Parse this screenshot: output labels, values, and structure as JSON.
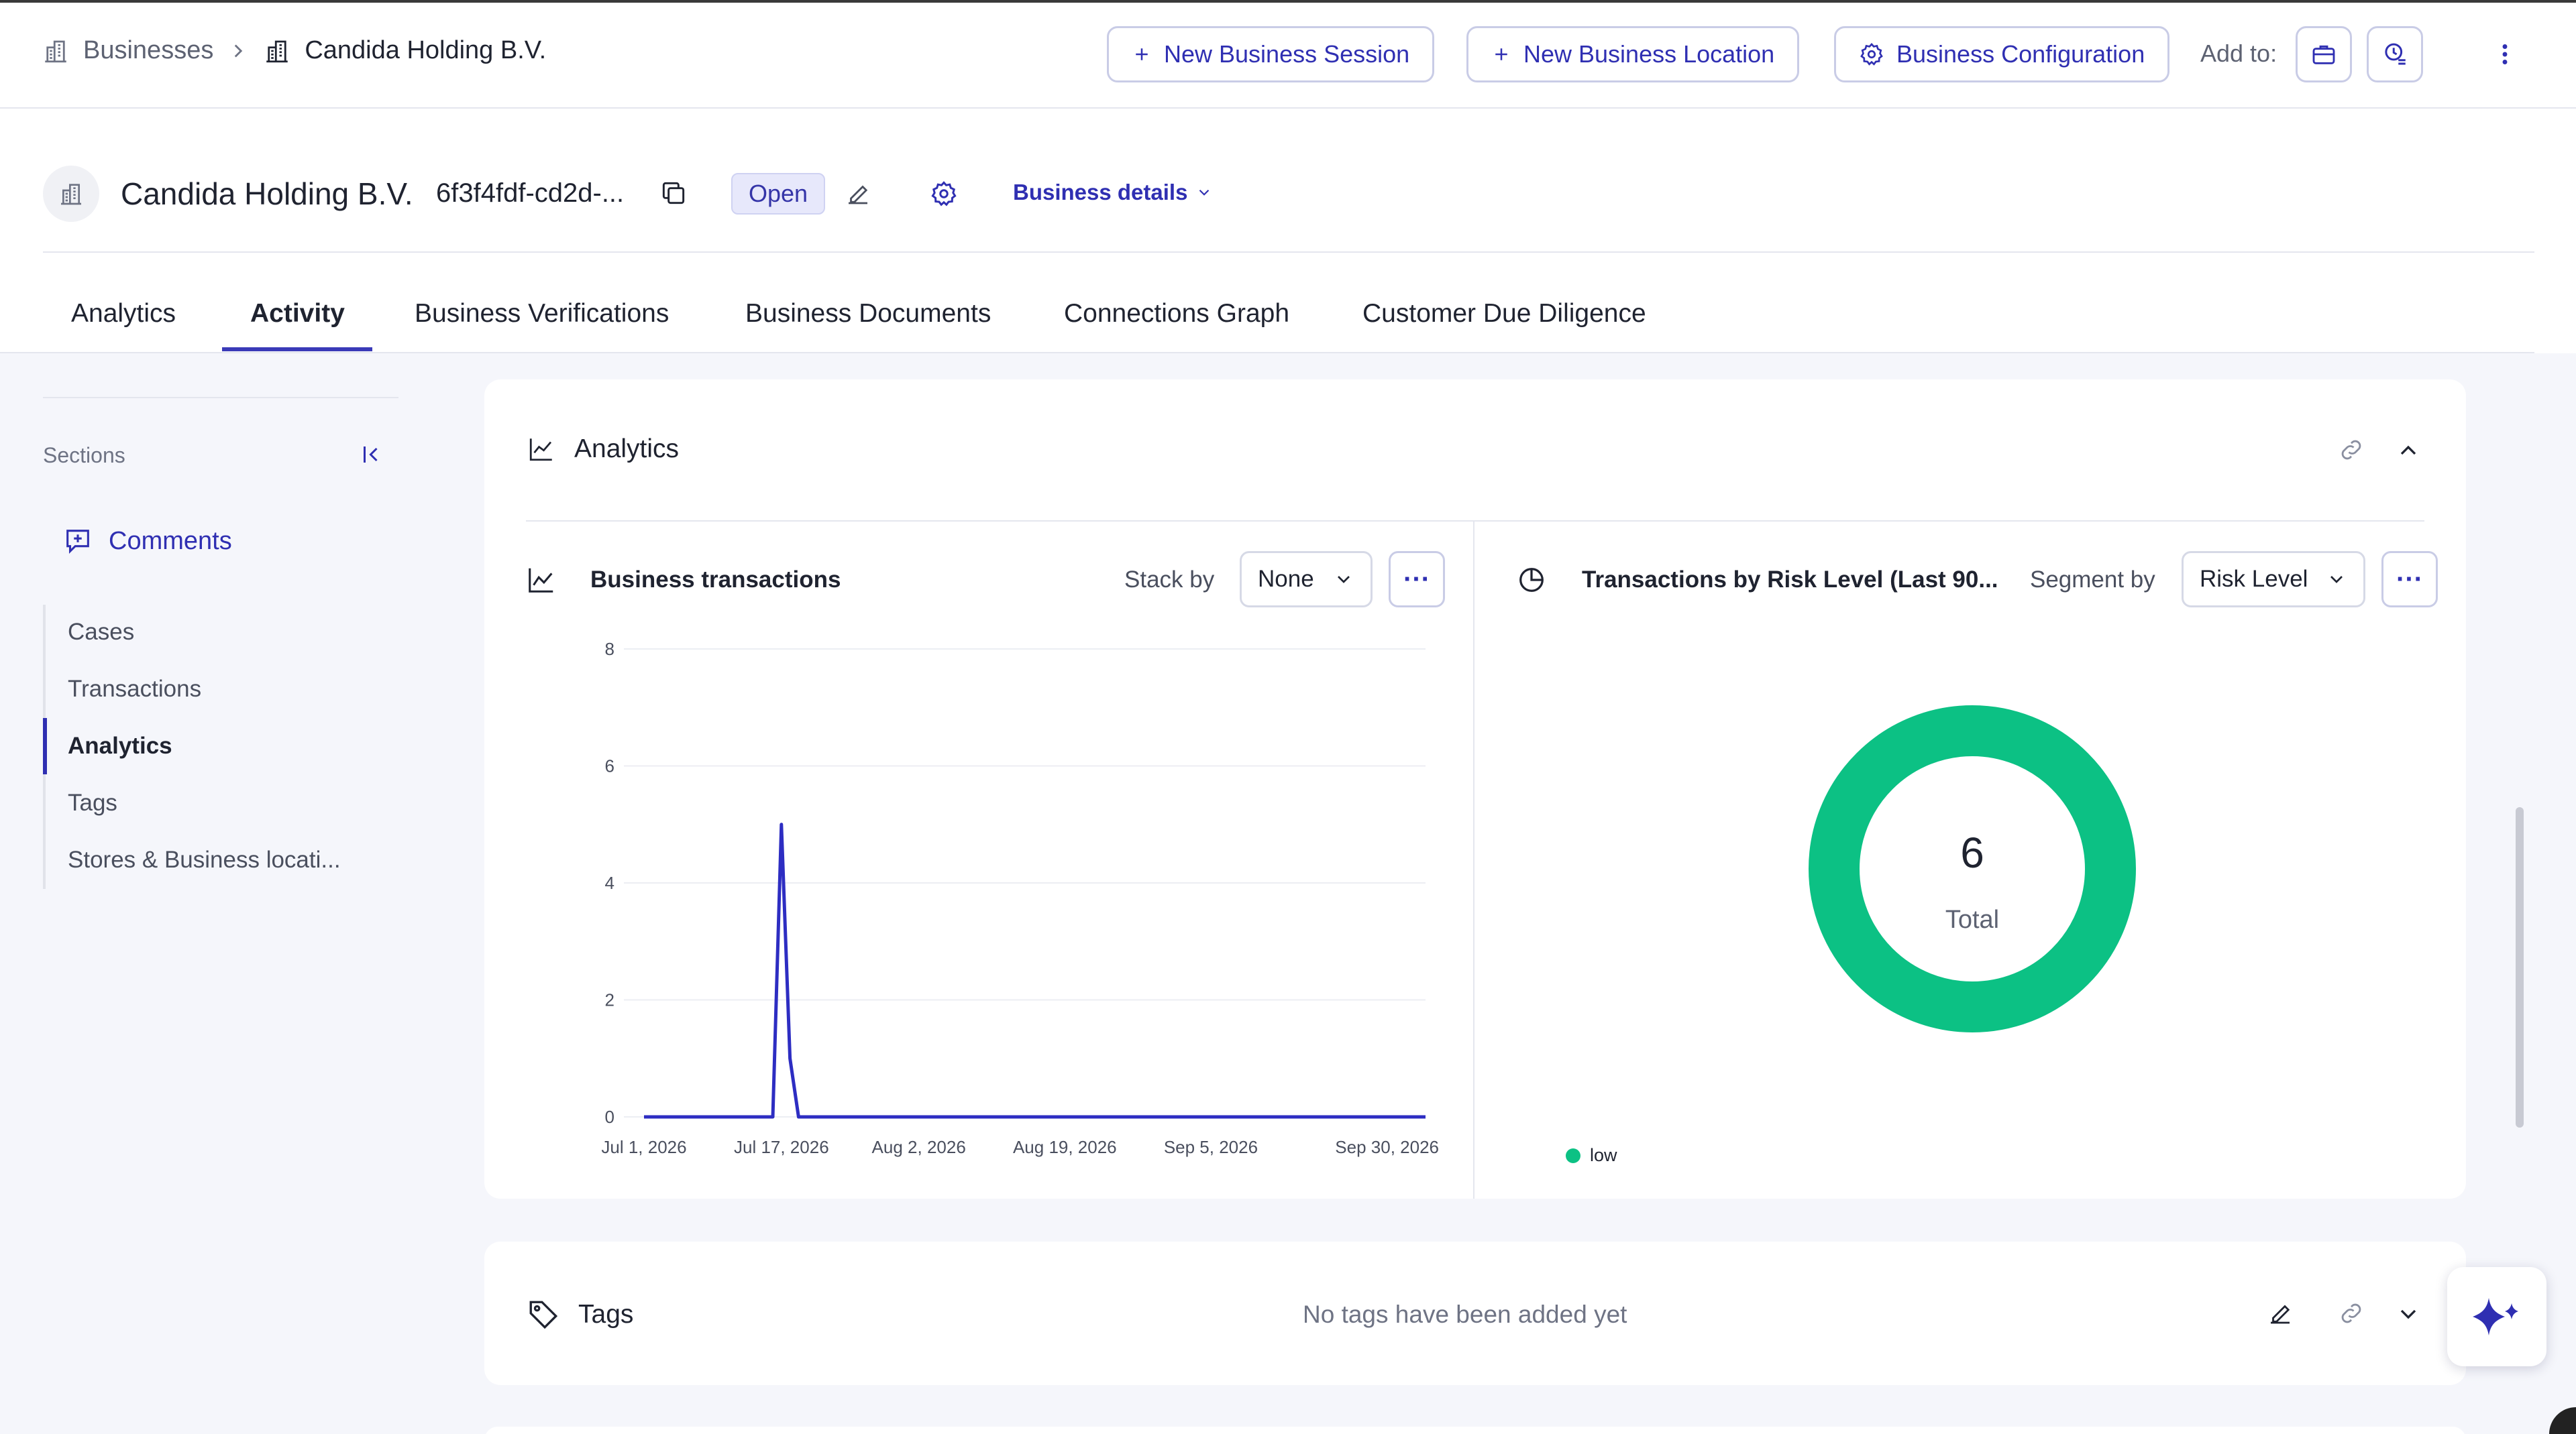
{
  "header": {
    "breadcrumb_root": "Businesses",
    "breadcrumb_current": "Candida Holding B.V.",
    "new_session": "New Business Session",
    "new_location": "New Business Location",
    "configuration": "Business Configuration",
    "add_to": "Add to:"
  },
  "entity": {
    "name": "Candida Holding B.V.",
    "id": "6f3f4fdf-cd2d-...",
    "status": "Open",
    "details": "Business details"
  },
  "tabs": [
    {
      "label": "Analytics"
    },
    {
      "label": "Activity"
    },
    {
      "label": "Business Verifications"
    },
    {
      "label": "Business Documents"
    },
    {
      "label": "Connections Graph"
    },
    {
      "label": "Customer Due Diligence"
    }
  ],
  "sidebar": {
    "label": "Sections",
    "comments": "Comments",
    "items": [
      {
        "label": "Cases"
      },
      {
        "label": "Transactions"
      },
      {
        "label": "Analytics"
      },
      {
        "label": "Tags"
      },
      {
        "label": "Stores & Business locati..."
      }
    ]
  },
  "analytics_card": {
    "title": "Analytics",
    "left_chart": {
      "title": "Business transactions",
      "control_label": "Stack by",
      "control_value": "None"
    },
    "right_chart": {
      "title": "Transactions by Risk Level (Last 90...",
      "control_label": "Segment by",
      "control_value": "Risk Level"
    }
  },
  "tags_card": {
    "title": "Tags",
    "empty": "No tags have been added yet"
  },
  "colors": {
    "accent": "#2f2fb2",
    "line": "#2d2dc2",
    "low": "#0cc184"
  },
  "chart_data": [
    {
      "type": "line",
      "title": "Business transactions",
      "x": [
        "Jul 1, 2026",
        "Jul 15, 2026",
        "Jul 16, 2026",
        "Jul 17, 2026",
        "Jul 18, 2026",
        "Jul 19, 2026",
        "Sep 30, 2026"
      ],
      "series": [
        {
          "values": [
            0,
            0,
            0,
            5,
            1,
            0,
            0
          ]
        }
      ],
      "x_ticks": [
        "Jul 1, 2026",
        "Jul 17, 2026",
        "Aug 2, 2026",
        "Aug 19, 2026",
        "Sep 5, 2026",
        "Sep 30, 2026"
      ],
      "y_ticks": [
        "0",
        "2",
        "4",
        "6",
        "8"
      ],
      "ylim": [
        0,
        8
      ],
      "grid": true
    },
    {
      "type": "pie",
      "title": "Transactions by Risk Level (Last 90...",
      "categories": [
        "low"
      ],
      "values": [
        6
      ],
      "center_value": "6",
      "center_label": "Total",
      "legend": "bottom-left"
    }
  ]
}
